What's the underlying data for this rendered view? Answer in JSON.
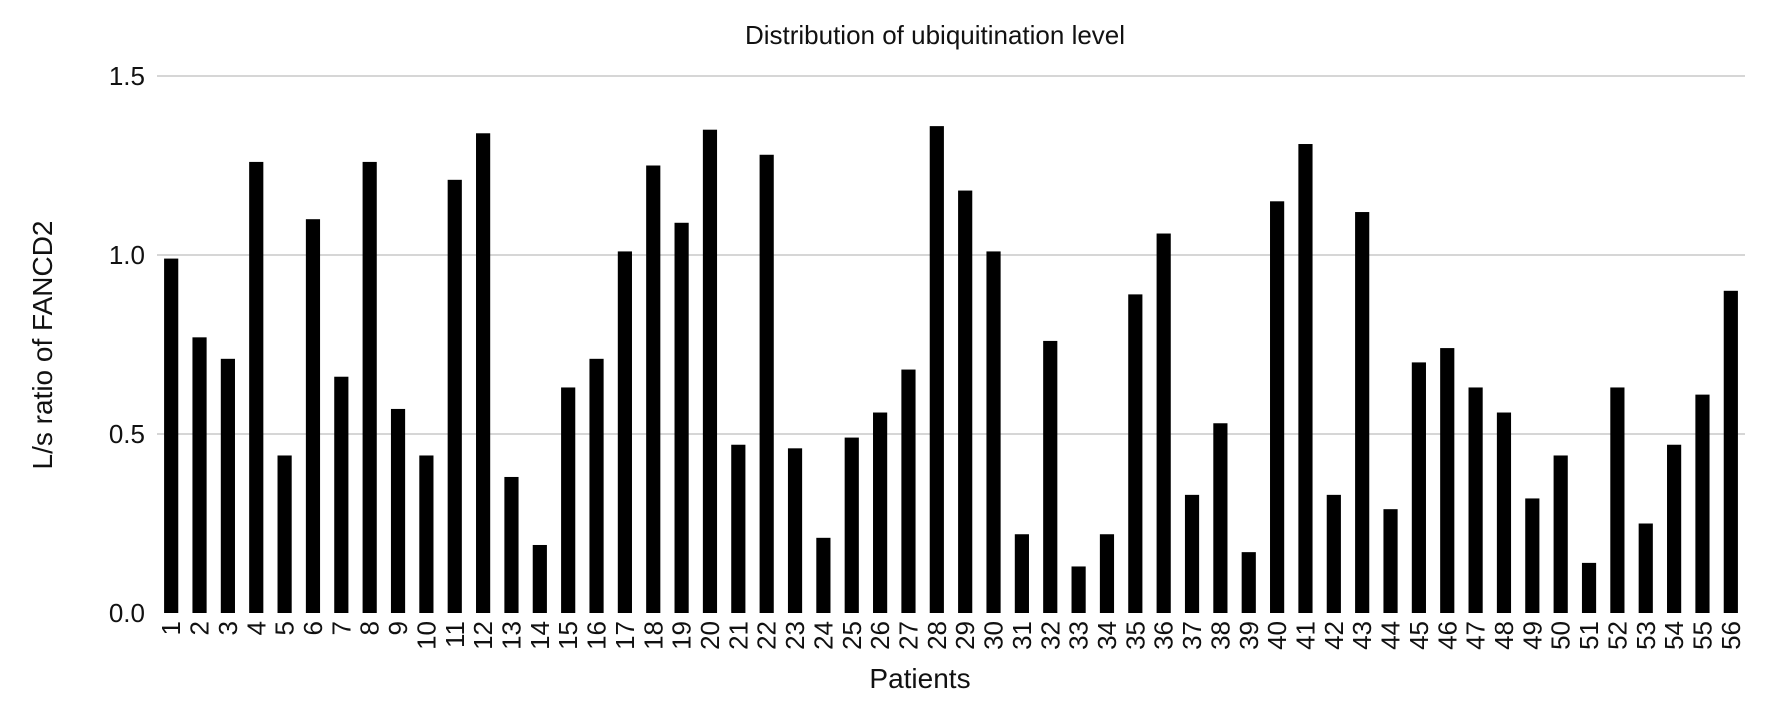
{
  "chart_data": {
    "type": "bar",
    "title": "Distribution of ubiquitination level",
    "xlabel": "Patients",
    "ylabel": "L/s ratio of FANCD2",
    "ylim": [
      0.0,
      1.5
    ],
    "yticks": [
      "0.0",
      "0.5",
      "1.0",
      "1.5"
    ],
    "grid": true,
    "bar_color": "#000000",
    "categories": [
      "1",
      "2",
      "3",
      "4",
      "5",
      "6",
      "7",
      "8",
      "9",
      "10",
      "11",
      "12",
      "13",
      "14",
      "15",
      "16",
      "17",
      "18",
      "19",
      "20",
      "21",
      "22",
      "23",
      "24",
      "25",
      "26",
      "27",
      "28",
      "29",
      "30",
      "31",
      "32",
      "33",
      "34",
      "35",
      "36",
      "37",
      "38",
      "39",
      "40",
      "41",
      "42",
      "43",
      "44",
      "45",
      "46",
      "47",
      "48",
      "49",
      "50",
      "51",
      "52",
      "53",
      "54",
      "55",
      "56"
    ],
    "values": [
      0.99,
      0.77,
      0.71,
      1.26,
      0.44,
      1.1,
      0.66,
      1.26,
      0.57,
      0.44,
      1.21,
      1.34,
      0.38,
      0.19,
      0.63,
      0.71,
      1.01,
      1.25,
      1.09,
      1.35,
      0.47,
      1.28,
      0.46,
      0.21,
      0.49,
      0.56,
      0.68,
      1.36,
      1.18,
      1.01,
      0.22,
      0.76,
      0.13,
      0.22,
      0.89,
      1.06,
      0.33,
      0.53,
      0.17,
      1.15,
      1.31,
      0.33,
      1.12,
      0.29,
      0.7,
      0.74,
      0.63,
      0.56,
      0.32,
      0.44,
      0.14,
      0.63,
      0.25,
      0.47,
      0.61,
      0.9
    ]
  }
}
